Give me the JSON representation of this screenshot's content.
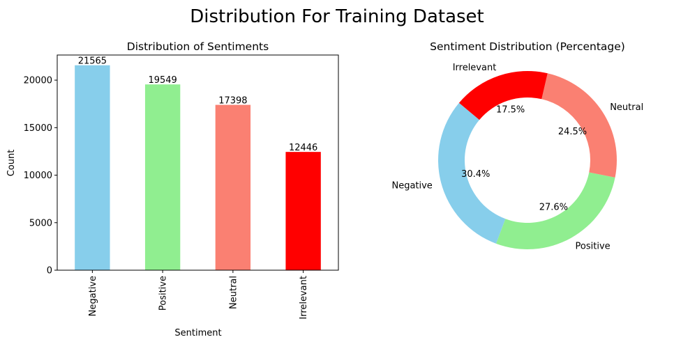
{
  "suptitle": "Distribution For Training Dataset",
  "chart_data": [
    {
      "type": "bar",
      "title": "Distribution of Sentiments",
      "xlabel": "Sentiment",
      "ylabel": "Count",
      "categories": [
        "Negative",
        "Positive",
        "Neutral",
        "Irrelevant"
      ],
      "values": [
        21565,
        19549,
        17398,
        12446
      ],
      "data_labels": [
        "21565",
        "19549",
        "17398",
        "12446"
      ],
      "colors": [
        "#87CEEB",
        "#90EE90",
        "#FA8072",
        "#FF0000"
      ],
      "ylim": [
        0,
        22644
      ],
      "yticks": [
        0,
        5000,
        10000,
        15000,
        20000
      ],
      "ytick_labels": [
        "0",
        "5000",
        "10000",
        "15000",
        "20000"
      ],
      "grid": false,
      "legend": "none"
    },
    {
      "type": "pie",
      "title": "Sentiment Distribution (Percentage)",
      "categories": [
        "Negative",
        "Positive",
        "Neutral",
        "Irrelevant"
      ],
      "values": [
        30.4,
        27.6,
        24.5,
        17.5
      ],
      "percent_labels": [
        "30.4%",
        "27.6%",
        "24.5%",
        "17.5%"
      ],
      "colors": [
        "#87CEEB",
        "#90EE90",
        "#FA8072",
        "#FF0000"
      ],
      "start_angle_deg": 140,
      "direction": "counterclockwise",
      "donut": true,
      "legend": "none"
    }
  ]
}
